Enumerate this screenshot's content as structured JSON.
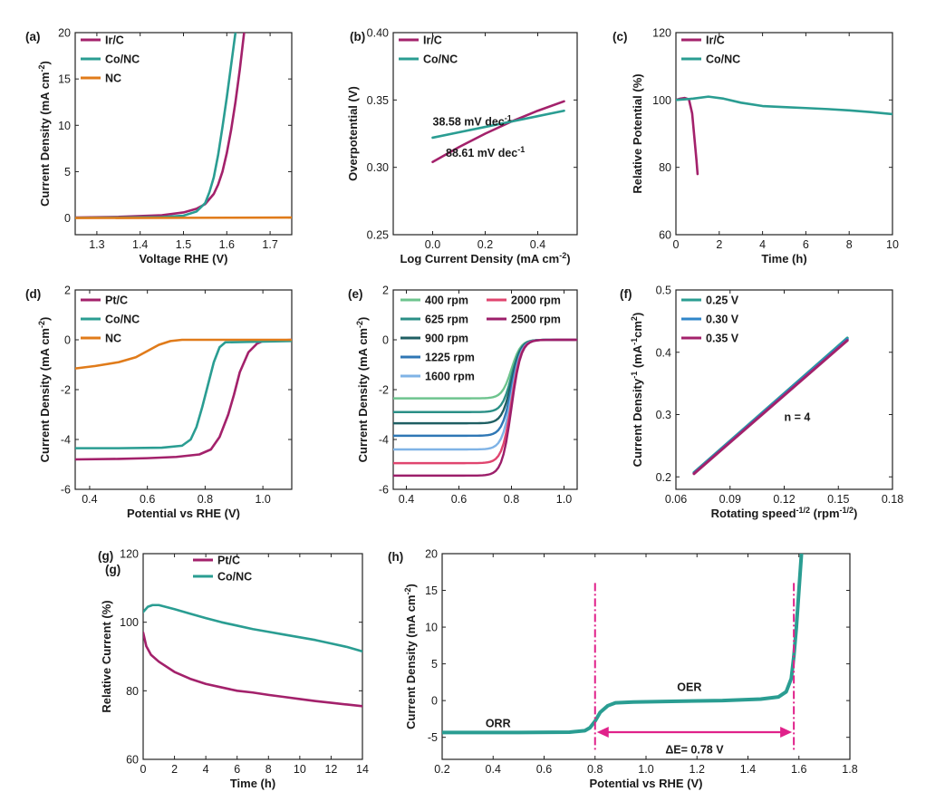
{
  "colors": {
    "ir_c": "#a3216b",
    "pt_c": "#a3216b",
    "co_nc": "#2a9d92",
    "nc": "#e07b1a",
    "marker": "#e0218a"
  },
  "chart_data": [
    {
      "id": "a",
      "letter": "(a)",
      "type": "line",
      "xlabel": "Voltage RHE (V)",
      "ylabel": "Current Density (mA cm-2)",
      "xlim": [
        1.25,
        1.75
      ],
      "ylim": [
        -1.8,
        20
      ],
      "xticks": [
        1.3,
        1.4,
        1.5,
        1.6,
        1.7
      ],
      "yticks": [
        0,
        5,
        10,
        15,
        20
      ],
      "xtick_labels": [
        "1.3",
        "1.4",
        "1.5",
        "1.6",
        "1.7"
      ],
      "ytick_labels": [
        "0",
        "5",
        "10",
        "15",
        "20"
      ],
      "legend_position": "top-left",
      "series": [
        {
          "name": "Ir/C",
          "color": "#a3216b",
          "x": [
            1.25,
            1.35,
            1.45,
            1.5,
            1.53,
            1.55,
            1.57,
            1.58,
            1.59,
            1.6,
            1.61,
            1.62,
            1.63,
            1.64
          ],
          "y": [
            0.05,
            0.12,
            0.3,
            0.6,
            1.0,
            1.5,
            2.6,
            3.6,
            5.0,
            7.0,
            9.5,
            12.5,
            16.0,
            20.0
          ]
        },
        {
          "name": "Co/NC",
          "color": "#2a9d92",
          "x": [
            1.25,
            1.35,
            1.45,
            1.5,
            1.53,
            1.55,
            1.56,
            1.57,
            1.58,
            1.59,
            1.6,
            1.61,
            1.62
          ],
          "y": [
            0.02,
            0.05,
            0.1,
            0.25,
            0.7,
            1.6,
            2.8,
            4.4,
            6.8,
            9.8,
            13.0,
            16.5,
            20.0
          ]
        },
        {
          "name": "NC",
          "color": "#e07b1a",
          "x": [
            1.25,
            1.5,
            1.75
          ],
          "y": [
            0.0,
            0.02,
            0.05
          ]
        }
      ]
    },
    {
      "id": "b",
      "letter": "(b)",
      "type": "line",
      "xlabel": "Log Current Density (mA cm-2)",
      "ylabel": "Overpotential (V)",
      "xlim": [
        -0.15,
        0.55
      ],
      "ylim": [
        0.25,
        0.4
      ],
      "xticks": [
        0.0,
        0.2,
        0.4
      ],
      "yticks": [
        0.25,
        0.3,
        0.35,
        0.4
      ],
      "xtick_labels": [
        "0.0",
        "0.2",
        "0.4"
      ],
      "ytick_labels": [
        "0.25",
        "0.30",
        "0.35",
        "0.40"
      ],
      "legend_position": "top-left",
      "series": [
        {
          "name": "Ir/C",
          "color": "#a3216b",
          "x": [
            0.0,
            0.1,
            0.2,
            0.3,
            0.4,
            0.5
          ],
          "y": [
            0.304,
            0.315,
            0.325,
            0.334,
            0.342,
            0.349
          ]
        },
        {
          "name": "Co/NC",
          "color": "#2a9d92",
          "x": [
            0.0,
            0.1,
            0.2,
            0.3,
            0.4,
            0.5
          ],
          "y": [
            0.322,
            0.326,
            0.33,
            0.334,
            0.338,
            0.342
          ]
        }
      ],
      "annotations": [
        {
          "value": "38.58",
          "unit": "mV dec",
          "sup": "-1",
          "x": 0.0,
          "y": 0.331
        },
        {
          "value": "88.61",
          "unit": "mV dec",
          "sup": "-1",
          "x": 0.05,
          "y": 0.308
        }
      ]
    },
    {
      "id": "c",
      "letter": "(c)",
      "type": "line",
      "xlabel": "Time (h)",
      "ylabel": "Relative Potential (%)",
      "xlim": [
        0,
        10
      ],
      "ylim": [
        60,
        120
      ],
      "xticks": [
        0,
        2,
        4,
        6,
        8,
        10
      ],
      "yticks": [
        60,
        80,
        100,
        120
      ],
      "xtick_labels": [
        "0",
        "2",
        "4",
        "6",
        "8",
        "10"
      ],
      "ytick_labels": [
        "60",
        "80",
        "100",
        "120"
      ],
      "legend_position": "top-left",
      "series": [
        {
          "name": "Ir/C",
          "color": "#a3216b",
          "x": [
            0.0,
            0.2,
            0.4,
            0.6,
            0.75,
            0.85,
            0.95,
            1.0
          ],
          "y": [
            100.0,
            100.4,
            100.6,
            100.2,
            96.0,
            89.0,
            82.0,
            78.0
          ]
        },
        {
          "name": "Co/NC",
          "color": "#2a9d92",
          "x": [
            0.0,
            0.8,
            1.5,
            2.2,
            3.0,
            4.0,
            5.0,
            6.0,
            7.0,
            8.0,
            9.0,
            10.0
          ],
          "y": [
            100.0,
            100.4,
            101.0,
            100.4,
            99.2,
            98.2,
            97.9,
            97.6,
            97.3,
            96.9,
            96.4,
            95.8
          ]
        }
      ]
    },
    {
      "id": "d",
      "letter": "(d)",
      "type": "line",
      "xlabel": "Potential vs RHE (V)",
      "ylabel": "Current Density (mA cm-2)",
      "xlim": [
        0.35,
        1.1
      ],
      "ylim": [
        -6,
        2
      ],
      "xticks": [
        0.4,
        0.6,
        0.8,
        1.0
      ],
      "yticks": [
        -6,
        -4,
        -2,
        0,
        2
      ],
      "xtick_labels": [
        "0.4",
        "0.6",
        "0.8",
        "1.0"
      ],
      "ytick_labels": [
        "-6",
        "-4",
        "-2",
        "0",
        "2"
      ],
      "legend_position": "top-left",
      "series": [
        {
          "name": "Pt/C",
          "color": "#a3216b",
          "x": [
            0.35,
            0.5,
            0.6,
            0.7,
            0.78,
            0.82,
            0.85,
            0.88,
            0.9,
            0.92,
            0.95,
            0.98,
            1.0,
            1.1
          ],
          "y": [
            -4.8,
            -4.78,
            -4.75,
            -4.7,
            -4.6,
            -4.4,
            -3.9,
            -3.0,
            -2.2,
            -1.3,
            -0.5,
            -0.15,
            -0.05,
            0.0
          ]
        },
        {
          "name": "Co/NC",
          "color": "#2a9d92",
          "x": [
            0.35,
            0.5,
            0.65,
            0.72,
            0.75,
            0.77,
            0.79,
            0.81,
            0.83,
            0.85,
            0.87,
            1.1
          ],
          "y": [
            -4.35,
            -4.35,
            -4.33,
            -4.25,
            -4.0,
            -3.5,
            -2.7,
            -1.8,
            -0.9,
            -0.3,
            -0.1,
            -0.05
          ]
        },
        {
          "name": "NC",
          "color": "#e07b1a",
          "x": [
            0.35,
            0.42,
            0.5,
            0.56,
            0.6,
            0.64,
            0.68,
            0.72,
            1.1
          ],
          "y": [
            -1.15,
            -1.05,
            -0.9,
            -0.7,
            -0.45,
            -0.2,
            -0.05,
            0.0,
            0.0
          ]
        }
      ]
    },
    {
      "id": "e",
      "letter": "(e)",
      "type": "line",
      "xlabel": "",
      "ylabel": "Current Density (mA cm-2)",
      "xlim": [
        0.35,
        1.05
      ],
      "ylim": [
        -6,
        2
      ],
      "xticks": [
        0.4,
        0.6,
        0.8,
        1.0
      ],
      "yticks": [
        -6,
        -4,
        -2,
        0,
        2
      ],
      "xtick_labels": [
        "0.4",
        "0.6",
        "0.8",
        "1.0"
      ],
      "ytick_labels": [
        "-6",
        "-4",
        "-2",
        "0",
        "2"
      ],
      "legend_position": "top-left",
      "onset": {
        "start": 0.72,
        "mid": 0.8,
        "end": 0.86
      },
      "series": [
        {
          "name": "400 rpm",
          "color": "#6ec48e",
          "plateau": -2.35
        },
        {
          "name": "625 rpm",
          "color": "#2a8f86",
          "plateau": -2.9
        },
        {
          "name": "900 rpm",
          "color": "#1f5f63",
          "plateau": -3.35
        },
        {
          "name": "1225 rpm",
          "color": "#2f77b5",
          "plateau": -3.85
        },
        {
          "name": "1600 rpm",
          "color": "#7fb3e6",
          "plateau": -4.4
        },
        {
          "name": "2000 rpm",
          "color": "#e0456f",
          "plateau": -4.95
        },
        {
          "name": "2500 rpm",
          "color": "#9c1e6a",
          "plateau": -5.45
        }
      ]
    },
    {
      "id": "f",
      "letter": "(f)",
      "type": "line",
      "xlabel": "Rotating speed-1/2 (rpm-1/2)",
      "ylabel": "Current Density-1 (mA-1cm2)",
      "xlim": [
        0.06,
        0.18
      ],
      "ylim": [
        0.18,
        0.5
      ],
      "xticks": [
        0.06,
        0.09,
        0.12,
        0.15,
        0.18
      ],
      "yticks": [
        0.2,
        0.3,
        0.4,
        0.5
      ],
      "xtick_labels": [
        "0.06",
        "0.09",
        "0.12",
        "0.15",
        "0.18"
      ],
      "ytick_labels": [
        "0.2",
        "0.3",
        "0.4",
        "0.5"
      ],
      "legend_position": "top-left",
      "annotation": "n = 4",
      "series": [
        {
          "name": "0.25 V",
          "color": "#2a9d92",
          "x": [
            0.07,
            0.155
          ],
          "y": [
            0.207,
            0.423
          ]
        },
        {
          "name": "0.30 V",
          "color": "#2f86c9",
          "x": [
            0.07,
            0.155
          ],
          "y": [
            0.206,
            0.421
          ]
        },
        {
          "name": "0.35 V",
          "color": "#a3216b",
          "x": [
            0.07,
            0.155
          ],
          "y": [
            0.205,
            0.419
          ]
        }
      ]
    },
    {
      "id": "g",
      "letter": "(g)",
      "letter2": "(g)",
      "type": "line",
      "xlabel": "Time (h)",
      "ylabel": "Relative Current (%)",
      "xlim": [
        0,
        14
      ],
      "ylim": [
        60,
        120
      ],
      "xticks": [
        0,
        2,
        4,
        6,
        8,
        10,
        12,
        14
      ],
      "yticks": [
        60,
        80,
        100,
        120
      ],
      "xtick_labels": [
        "0",
        "2",
        "4",
        "6",
        "8",
        "10",
        "12",
        "14"
      ],
      "ytick_labels": [
        "60",
        "80",
        "100",
        "120"
      ],
      "legend_position": "top-left",
      "series": [
        {
          "name": "Pt/C",
          "color": "#a3216b",
          "x": [
            0.0,
            0.2,
            0.5,
            1.0,
            2.0,
            3.0,
            4.0,
            5.0,
            6.0,
            7.0,
            8.0,
            9.0,
            10.0,
            11.0,
            12.0,
            13.0,
            14.0
          ],
          "y": [
            97.0,
            93.0,
            90.5,
            88.5,
            85.5,
            83.5,
            82.0,
            81.0,
            80.0,
            79.5,
            78.8,
            78.2,
            77.6,
            77.0,
            76.5,
            76.0,
            75.5
          ]
        },
        {
          "name": "Co/NC",
          "color": "#2a9d92",
          "x": [
            0.0,
            0.3,
            0.6,
            1.0,
            2.0,
            3.0,
            4.0,
            5.0,
            6.0,
            7.0,
            8.0,
            9.0,
            10.0,
            11.0,
            12.0,
            13.0,
            14.0
          ],
          "y": [
            103.0,
            104.5,
            105.0,
            105.0,
            103.8,
            102.5,
            101.2,
            100.0,
            99.0,
            98.0,
            97.2,
            96.4,
            95.6,
            94.8,
            93.8,
            92.8,
            91.5
          ]
        }
      ]
    },
    {
      "id": "h",
      "letter": "(h)",
      "type": "line",
      "xlabel": "Potential vs RHE (V)",
      "ylabel": "Current Density (mA cm-2)",
      "xlim": [
        0.2,
        1.8
      ],
      "ylim": [
        -8,
        20
      ],
      "xticks": [
        0.2,
        0.4,
        0.6,
        0.8,
        1.0,
        1.2,
        1.4,
        1.6,
        1.8
      ],
      "yticks": [
        -5,
        0,
        5,
        10,
        15,
        20
      ],
      "xtick_labels": [
        "0.2",
        "0.4",
        "0.6",
        "0.8",
        "1.0",
        "1.2",
        "1.4",
        "1.6",
        "1.8"
      ],
      "ytick_labels": [
        "-5",
        "0",
        "5",
        "10",
        "15",
        "20"
      ],
      "labels": {
        "orr": "ORR",
        "oer": "OER",
        "delta_e": "ΔE= 0.78 V"
      },
      "markers": {
        "v1": 0.8,
        "v2": 1.58,
        "top": 16,
        "bottom": -7,
        "arrow_y": -4.3
      },
      "series": [
        {
          "name": "Co/NC",
          "color": "#2a9d92",
          "x": [
            0.2,
            0.5,
            0.7,
            0.76,
            0.78,
            0.8,
            0.82,
            0.85,
            0.88,
            0.95,
            1.1,
            1.3,
            1.45,
            1.52,
            1.55,
            1.57,
            1.58,
            1.59,
            1.6,
            1.61
          ],
          "y": [
            -4.35,
            -4.35,
            -4.3,
            -4.1,
            -3.7,
            -2.8,
            -1.6,
            -0.7,
            -0.3,
            -0.2,
            -0.1,
            0.0,
            0.2,
            0.5,
            1.2,
            3.0,
            6.0,
            10.0,
            15.0,
            20.0
          ]
        }
      ]
    }
  ]
}
